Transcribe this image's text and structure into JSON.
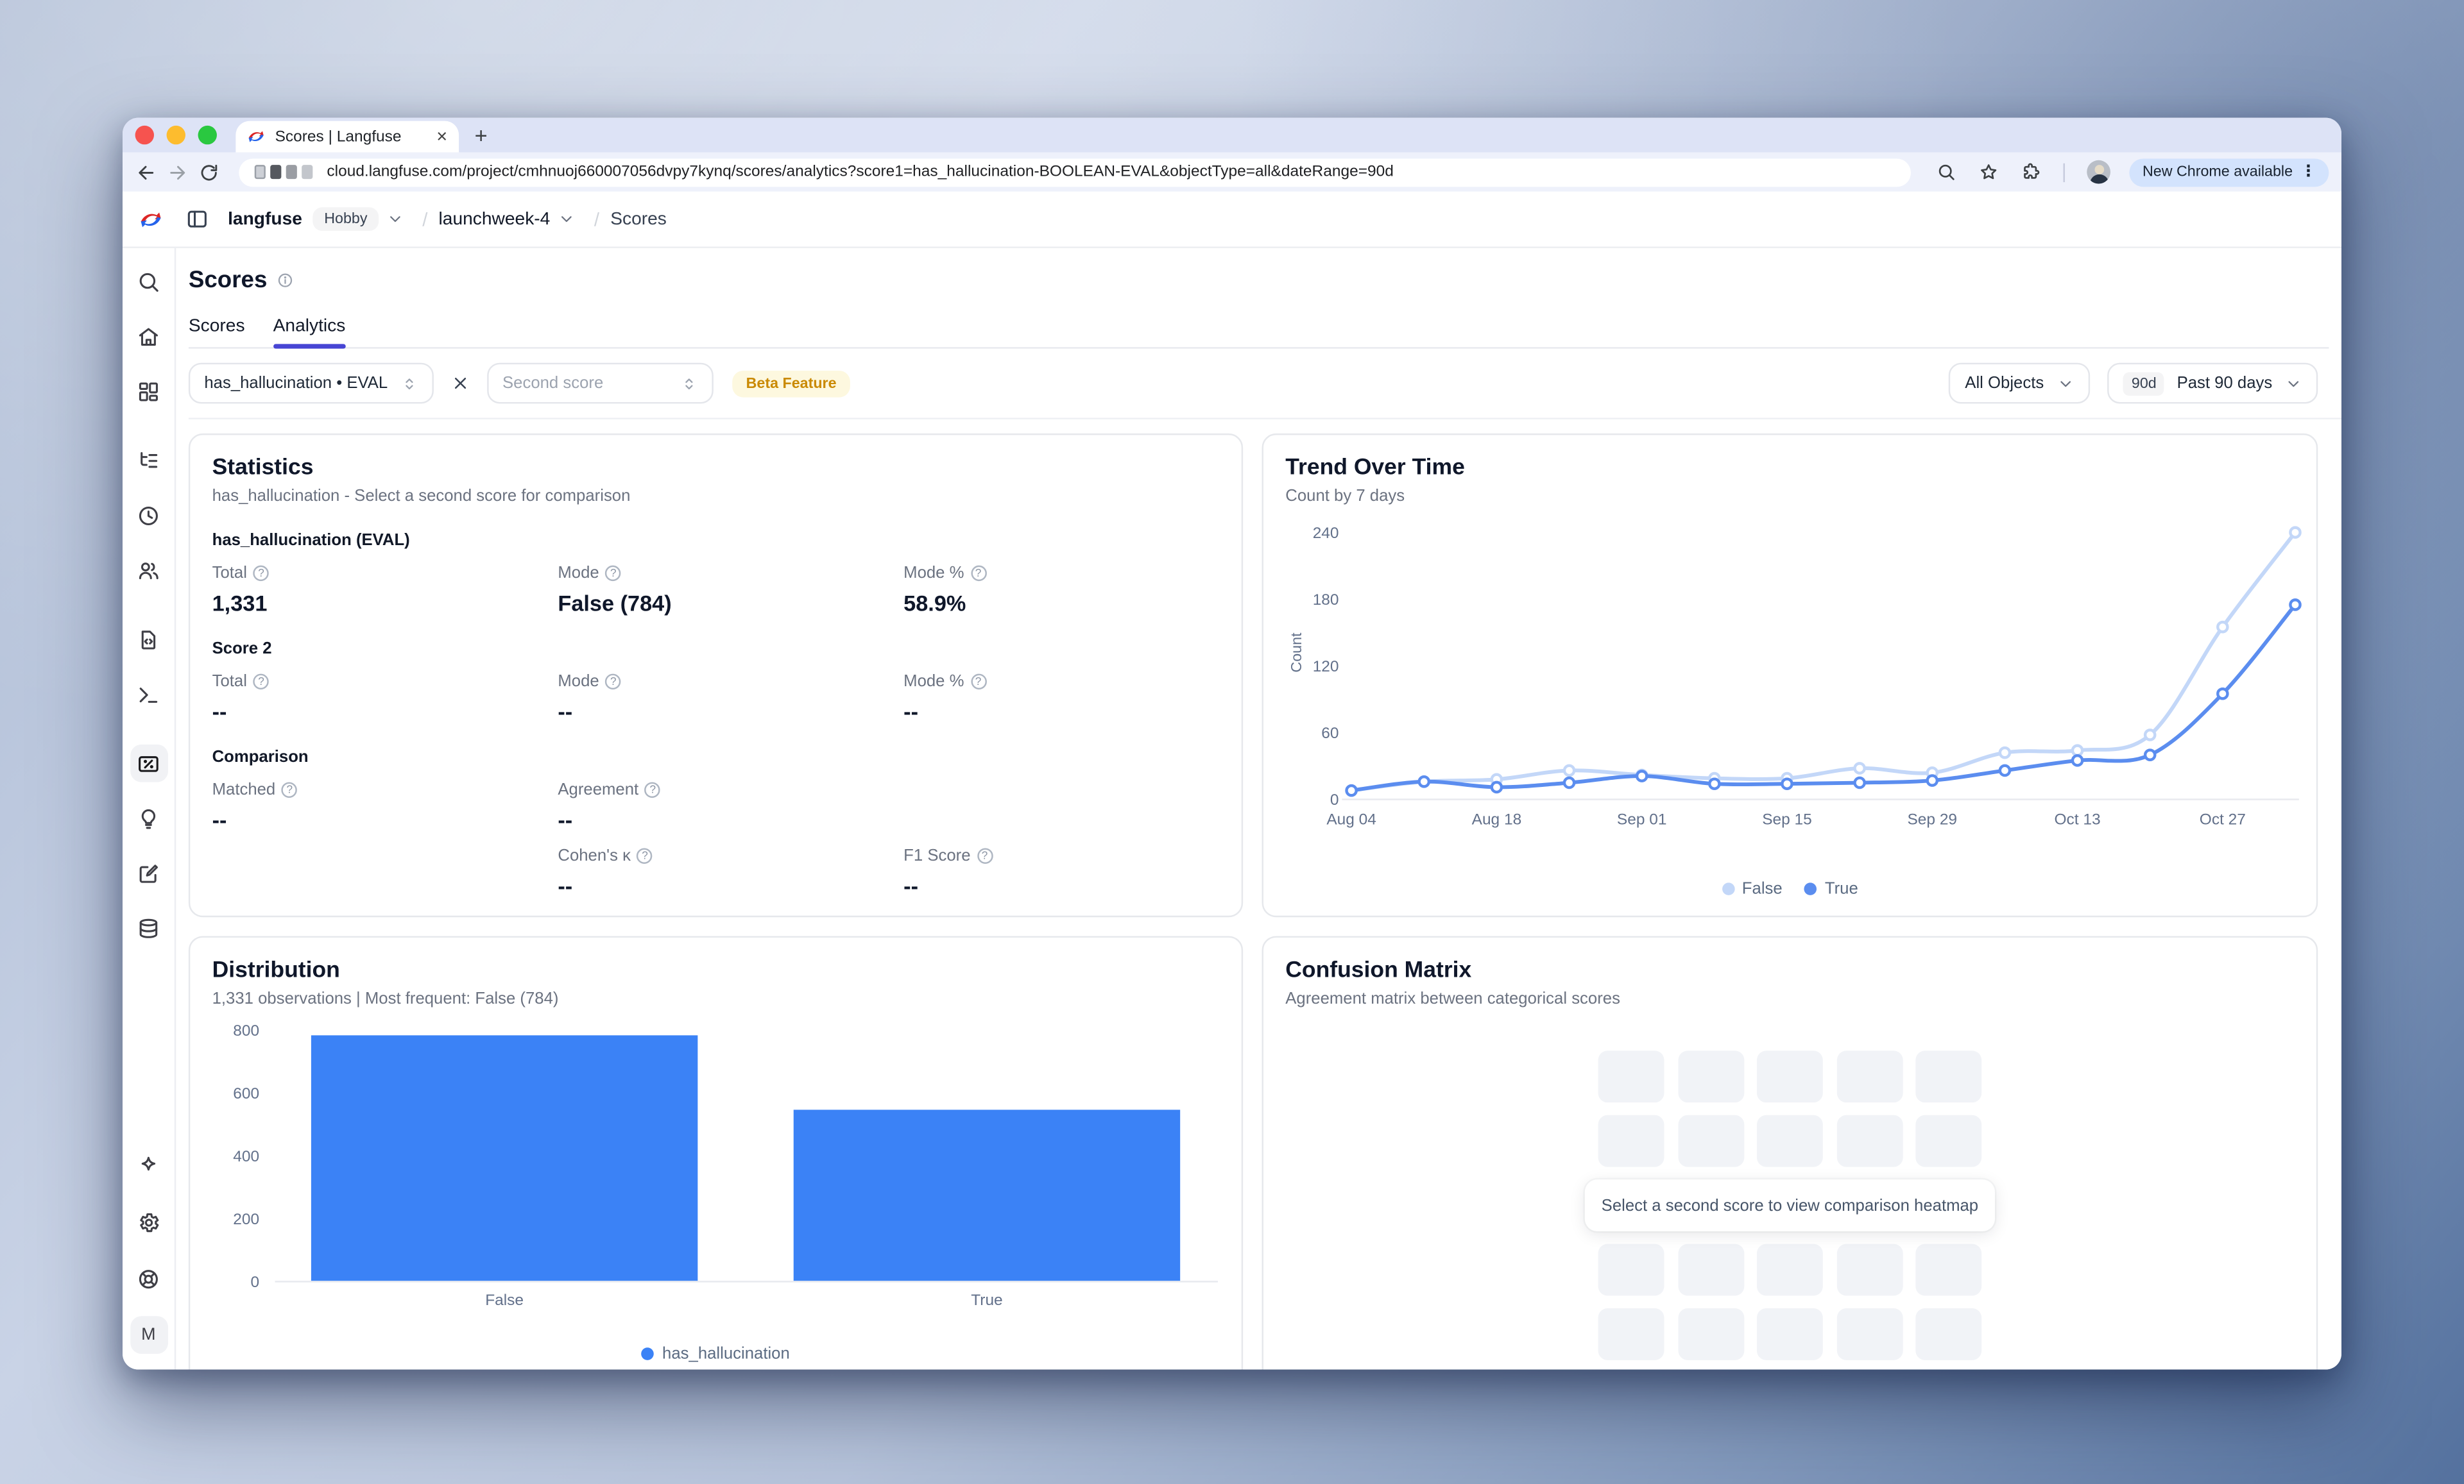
{
  "browser": {
    "tab_title": "Scores | Langfuse",
    "tab_close_glyph": "✕",
    "new_tab_glyph": "+",
    "url": "cloud.langfuse.com/project/cmhnuoj660007056dvpy7kynq/scores/analytics?score1=has_hallucination-BOOLEAN-EVAL&objectType=all&dateRange=90d",
    "update_pill_label": "New Chrome available",
    "more_glyph": "⋮",
    "traffic_colors": {
      "close": "#f6534f",
      "minimize": "#fdbc2e",
      "zoom": "#2ac840"
    }
  },
  "header": {
    "product": "langfuse",
    "org_badge": "Hobby",
    "project": "launchweek-4",
    "page": "Scores",
    "separator": "/"
  },
  "sidebar": {
    "groups": [
      [
        {
          "icon": "search",
          "label": "search"
        },
        {
          "icon": "home",
          "label": "home"
        },
        {
          "icon": "dashboard",
          "label": "dashboards"
        }
      ],
      [
        {
          "icon": "tree",
          "label": "tracing"
        },
        {
          "icon": "clock",
          "label": "sessions"
        },
        {
          "icon": "users",
          "label": "users"
        }
      ],
      [
        {
          "icon": "filecode",
          "label": "prompts"
        },
        {
          "icon": "terminal",
          "label": "playground"
        }
      ],
      [
        {
          "icon": "percent",
          "label": "scores",
          "active": true
        },
        {
          "icon": "bulb",
          "label": "evaluation"
        },
        {
          "icon": "annotate",
          "label": "annotation"
        },
        {
          "icon": "database",
          "label": "datasets"
        }
      ]
    ],
    "bottom": [
      {
        "icon": "sparkle",
        "label": "whats-new"
      },
      {
        "icon": "gear",
        "label": "settings"
      },
      {
        "icon": "lifebuoy",
        "label": "support"
      }
    ],
    "avatar": "M"
  },
  "page": {
    "title": "Scores",
    "tabs": [
      {
        "label": "Scores",
        "active": false
      },
      {
        "label": "Analytics",
        "active": true
      }
    ],
    "filters": {
      "score1": "has_hallucination • EVAL",
      "score2_placeholder": "Second score",
      "beta_badge": "Beta Feature",
      "object_filter": "All Objects",
      "range_badge": "90d",
      "range_label": "Past 90 days"
    }
  },
  "cards": {
    "statistics": {
      "title": "Statistics",
      "subtitle": "has_hallucination - Select a second score for comparison",
      "help_glyph": "?",
      "sections": [
        {
          "heading": "has_hallucination (EVAL)",
          "rows": [
            [
              {
                "label": "Total",
                "value": "1,331"
              },
              {
                "label": "Mode",
                "value": "False (784)"
              },
              {
                "label": "Mode %",
                "value": "58.9%"
              }
            ]
          ]
        },
        {
          "heading": "Score 2",
          "rows": [
            [
              {
                "label": "Total",
                "value": "--"
              },
              {
                "label": "Mode",
                "value": "--"
              },
              {
                "label": "Mode %",
                "value": "--"
              }
            ]
          ]
        },
        {
          "heading": "Comparison",
          "rows": [
            [
              {
                "label": "Matched",
                "value": "--"
              },
              {
                "label": "Agreement",
                "value": "--"
              },
              null
            ],
            [
              null,
              {
                "label": "Cohen's κ",
                "value": "--"
              },
              {
                "label": "F1 Score",
                "value": "--"
              }
            ]
          ]
        }
      ]
    },
    "trend": {
      "title": "Trend Over Time",
      "subtitle": "Count by 7 days"
    },
    "distribution": {
      "title": "Distribution",
      "subtitle": "1,331 observations | Most frequent: False (784)",
      "legend": "has_hallucination"
    },
    "confusion": {
      "title": "Confusion Matrix",
      "subtitle": "Agreement matrix between categorical scores",
      "message": "Select a second score to view comparison heatmap",
      "grid_rows": 4,
      "grid_cols": 5
    }
  },
  "chart_data": [
    {
      "id": "trend_over_time",
      "type": "line",
      "title": "Trend Over Time",
      "subtitle": "Count by 7 days",
      "ylabel": "Count",
      "ylim": [
        0,
        240
      ],
      "yticks": [
        0,
        60,
        120,
        180,
        240
      ],
      "x": [
        "Aug 04",
        "Aug 11",
        "Aug 18",
        "Aug 25",
        "Sep 01",
        "Sep 08",
        "Sep 15",
        "Sep 22",
        "Sep 29",
        "Oct 06",
        "Oct 13",
        "Oct 20",
        "Oct 27",
        "Nov 03"
      ],
      "xtick_labels": [
        "Aug 04",
        "Aug 18",
        "Sep 01",
        "Sep 15",
        "Sep 29",
        "Oct 13",
        "Oct 27"
      ],
      "xtick_indices": [
        0,
        2,
        4,
        6,
        8,
        10,
        12
      ],
      "grid": false,
      "legend_position": "bottom",
      "series": [
        {
          "name": "False",
          "color": "#c3d7f8",
          "values": [
            8,
            16,
            18,
            26,
            22,
            19,
            19,
            28,
            24,
            42,
            44,
            58,
            155,
            240
          ]
        },
        {
          "name": "True",
          "color": "#5b8def",
          "values": [
            8,
            16,
            11,
            15,
            21,
            14,
            14,
            15,
            17,
            26,
            35,
            40,
            95,
            175
          ]
        }
      ]
    },
    {
      "id": "distribution",
      "type": "bar",
      "title": "Distribution",
      "categories": [
        "False",
        "True"
      ],
      "series": [
        {
          "name": "has_hallucination",
          "color": "#3b82f6",
          "values": [
            784,
            547
          ]
        }
      ],
      "ylim": [
        0,
        800
      ],
      "yticks": [
        0,
        200,
        400,
        600,
        800
      ],
      "grid": false,
      "legend_position": "bottom"
    }
  ]
}
